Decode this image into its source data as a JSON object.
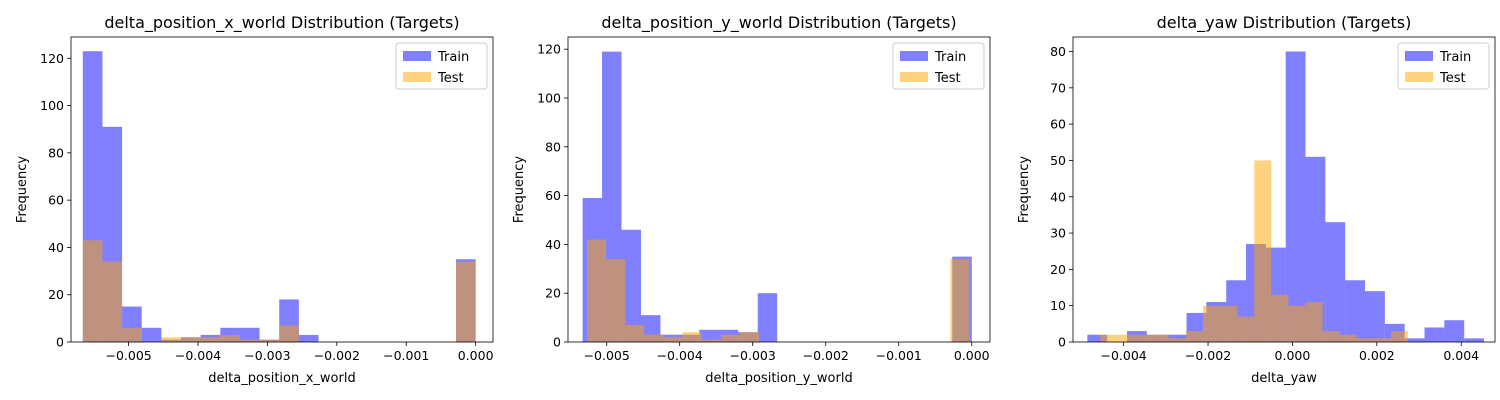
{
  "colors": {
    "train": "#0000ff",
    "test": "#ffa500",
    "bar_opacity": 0.5
  },
  "chart_data": [
    {
      "type": "bar",
      "title": "delta_position_x_world Distribution (Targets)",
      "xlabel": "delta_position_x_world",
      "ylabel": "Frequency",
      "xlim": [
        -0.00583,
        0.00025
      ],
      "ylim": [
        0,
        129
      ],
      "xticks": [
        -0.005,
        -0.004,
        -0.003,
        -0.002,
        -0.001,
        0.0
      ],
      "xtick_labels": [
        "−0.005",
        "−0.004",
        "−0.003",
        "−0.002",
        "−0.001",
        "0.000"
      ],
      "yticks": [
        0,
        20,
        40,
        60,
        80,
        100,
        120
      ],
      "ytick_labels": [
        "0",
        "20",
        "40",
        "60",
        "80",
        "100",
        "120"
      ],
      "legend": {
        "position": "top-right",
        "entries": [
          "Train",
          "Test"
        ]
      },
      "series": [
        {
          "name": "Train",
          "bin_start": -0.00566,
          "bin_width": 0.000283,
          "counts": [
            123,
            91,
            15,
            6,
            1,
            2,
            3,
            6,
            6,
            1,
            18,
            3,
            0,
            0,
            0,
            0,
            0,
            0,
            0,
            35
          ]
        },
        {
          "name": "Test",
          "bin_start": -0.00566,
          "bin_width": 0.000283,
          "counts": [
            43,
            34,
            6,
            0,
            2,
            2,
            2,
            3,
            1,
            1,
            7,
            0,
            0,
            0,
            0,
            0,
            0,
            0,
            0,
            34
          ]
        }
      ]
    },
    {
      "type": "bar",
      "title": "delta_position_y_world Distribution (Targets)",
      "xlabel": "delta_position_y_world",
      "ylabel": "Frequency",
      "xlim": [
        -0.00553,
        0.00025
      ],
      "ylim": [
        0,
        125
      ],
      "xticks": [
        -0.005,
        -0.004,
        -0.003,
        -0.002,
        -0.001,
        0.0
      ],
      "xtick_labels": [
        "−0.005",
        "−0.004",
        "−0.003",
        "−0.002",
        "−0.001",
        "0.000"
      ],
      "yticks": [
        0,
        20,
        40,
        60,
        80,
        100,
        120
      ],
      "ytick_labels": [
        "0",
        "20",
        "40",
        "60",
        "80",
        "100",
        "120"
      ],
      "legend": {
        "position": "top-right",
        "entries": [
          "Train",
          "Test"
        ]
      },
      "series": [
        {
          "name": "Train",
          "bin_start": -0.00533,
          "bin_width": 0.0002665,
          "counts": [
            59,
            119,
            46,
            11,
            3,
            3,
            5,
            5,
            4,
            20,
            0,
            0,
            0,
            0,
            0,
            0,
            0,
            0,
            0,
            35
          ]
        },
        {
          "name": "Test",
          "bin_start": -0.00527,
          "bin_width": 0.000262,
          "counts": [
            42,
            34,
            7,
            3,
            2,
            4,
            1,
            3,
            4,
            0,
            0,
            0,
            0,
            0,
            0,
            0,
            0,
            0,
            0,
            34
          ]
        }
      ]
    },
    {
      "type": "bar",
      "title": "delta_yaw Distribution (Targets)",
      "xlabel": "delta_yaw",
      "ylabel": "Frequency",
      "xlim": [
        -0.0052,
        0.0048
      ],
      "ylim": [
        0,
        84
      ],
      "xticks": [
        -0.004,
        -0.002,
        0.0,
        0.002,
        0.004
      ],
      "xtick_labels": [
        "−0.004",
        "−0.002",
        "0.000",
        "0.002",
        "0.004"
      ],
      "yticks": [
        0,
        10,
        20,
        30,
        40,
        50,
        60,
        70,
        80
      ],
      "ytick_labels": [
        "0",
        "10",
        "20",
        "30",
        "40",
        "50",
        "60",
        "70",
        "80"
      ],
      "legend": {
        "position": "top-right",
        "entries": [
          "Train",
          "Test"
        ]
      },
      "series": [
        {
          "name": "Train",
          "bin_start": -0.00486,
          "bin_width": 0.00047,
          "counts": [
            2,
            0,
            3,
            2,
            2,
            8,
            11,
            17,
            27,
            26,
            80,
            51,
            33,
            17,
            14,
            5,
            1,
            4,
            6,
            1
          ]
        },
        {
          "name": "Test",
          "bin_start": -0.00455,
          "bin_width": 0.000405,
          "counts": [
            2,
            2,
            2,
            2,
            1,
            3,
            10,
            10,
            7,
            50,
            13,
            10,
            11,
            3,
            2,
            1,
            1,
            3,
            0,
            0
          ]
        }
      ]
    }
  ]
}
